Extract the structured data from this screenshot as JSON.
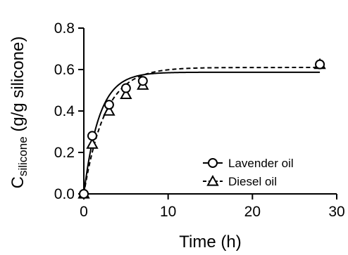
{
  "chart_data": {
    "type": "scatter",
    "xlabel": "Time (h)",
    "ylabel_main": "C",
    "ylabel_sub": "silicone",
    "ylabel_rest": " (g/g silicone)",
    "xlim": [
      0,
      30
    ],
    "ylim": [
      0.0,
      0.8
    ],
    "xticks": [
      0,
      10,
      20,
      30
    ],
    "xtick_labels": [
      "0",
      "10",
      "20",
      "30"
    ],
    "yticks": [
      0.0,
      0.2,
      0.4,
      0.6,
      0.8
    ],
    "ytick_labels": [
      "0.0",
      "0.2",
      "0.4",
      "0.6",
      "0.8"
    ],
    "grid": false,
    "legend_position": "bottom-right",
    "series": [
      {
        "name": "Lavender oil",
        "marker": "circle",
        "line_style": "solid",
        "x": [
          0,
          1,
          3,
          5,
          7,
          28
        ],
        "y": [
          0.0,
          0.28,
          0.43,
          0.51,
          0.545,
          0.625
        ],
        "fit": {
          "model": "first-order",
          "plateau": 0.587,
          "k": 0.55
        }
      },
      {
        "name": "Diesel oil",
        "marker": "triangle",
        "line_style": "dashed",
        "x": [
          0,
          1,
          3,
          5,
          7,
          28
        ],
        "y": [
          0.0,
          0.24,
          0.4,
          0.48,
          0.525,
          0.625
        ],
        "fit": {
          "model": "first-order",
          "plateau": 0.61,
          "k": 0.4
        }
      }
    ]
  }
}
